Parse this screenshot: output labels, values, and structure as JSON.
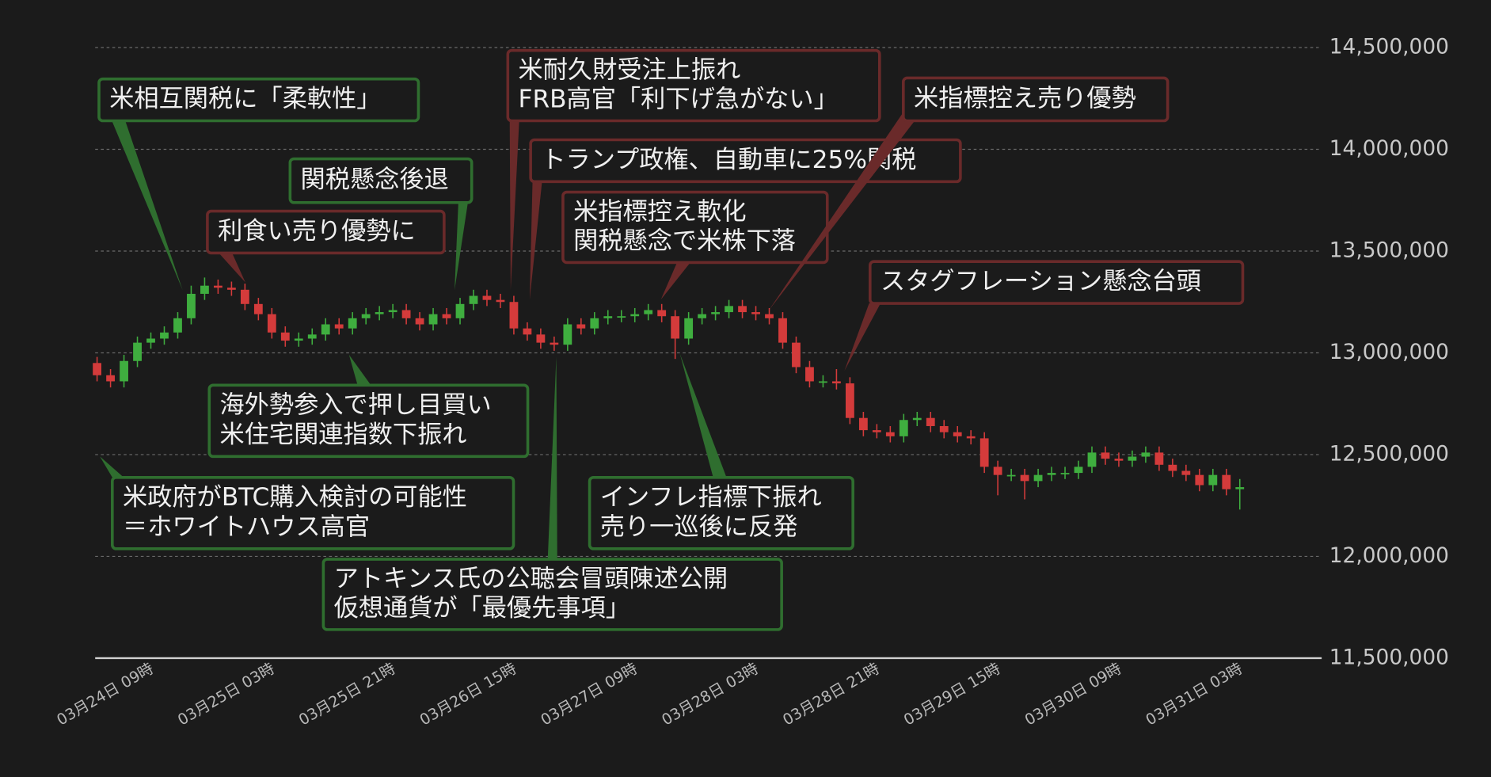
{
  "chart_data": {
    "type": "candlestick",
    "categories": [
      null,
      null,
      null,
      null,
      "03月24日 09時",
      null,
      null,
      null,
      null,
      null,
      null,
      null,
      null,
      "03月25日 03時",
      null,
      null,
      null,
      null,
      null,
      null,
      null,
      null,
      "03月25日 21時",
      null,
      null,
      null,
      null,
      null,
      null,
      null,
      null,
      "03月26日 15時",
      null,
      null,
      null,
      null,
      null,
      null,
      null,
      null,
      "03月27日 09時",
      null,
      null,
      null,
      null,
      null,
      null,
      null,
      null,
      "03月28日 03時",
      null,
      null,
      null,
      null,
      null,
      null,
      null,
      null,
      "03月28日 21時",
      null,
      null,
      null,
      null,
      null,
      null,
      null,
      null,
      "03月29日 15時",
      null,
      null,
      null,
      null,
      null,
      null,
      null,
      null,
      "03月30日 09時",
      null,
      null,
      null,
      null,
      null,
      null,
      null,
      null,
      "03月31日 03時"
    ],
    "open": [
      12950000,
      12890000,
      12860000,
      12960000,
      13050000,
      13070000,
      13100000,
      13170000,
      13290000,
      13330000,
      13320000,
      13310000,
      13240000,
      13190000,
      13100000,
      13060000,
      13070000,
      13090000,
      13140000,
      13120000,
      13170000,
      13190000,
      13200000,
      13210000,
      13170000,
      13140000,
      13190000,
      13170000,
      13240000,
      13280000,
      13260000,
      13250000,
      13120000,
      13090000,
      13050000,
      13040000,
      13140000,
      13120000,
      13170000,
      13180000,
      13180000,
      13190000,
      13210000,
      13180000,
      13070000,
      13170000,
      13190000,
      13200000,
      13230000,
      13200000,
      13190000,
      13170000,
      13050000,
      12930000,
      12860000,
      12860000,
      12850000,
      12680000,
      12620000,
      12610000,
      12590000,
      12670000,
      12680000,
      12640000,
      12610000,
      12590000,
      12580000,
      12440000,
      12400000,
      12400000,
      12370000,
      12400000,
      12410000,
      12410000,
      12440000,
      12510000,
      12480000,
      12470000,
      12490000,
      12510000,
      12450000,
      12420000,
      12400000,
      12350000,
      12400000,
      12330000
    ],
    "high": [
      12980000,
      12920000,
      12990000,
      13080000,
      13100000,
      13130000,
      13200000,
      13330000,
      13370000,
      13360000,
      13350000,
      13340000,
      13270000,
      13220000,
      13130000,
      13100000,
      13120000,
      13170000,
      13170000,
      13200000,
      13220000,
      13230000,
      13240000,
      13240000,
      13200000,
      13220000,
      13220000,
      13270000,
      13310000,
      13310000,
      13290000,
      13280000,
      13150000,
      13120000,
      13080000,
      13170000,
      13170000,
      13200000,
      13210000,
      13210000,
      13220000,
      13240000,
      13240000,
      13210000,
      13200000,
      13220000,
      13230000,
      13260000,
      13260000,
      13230000,
      13220000,
      13200000,
      13080000,
      12960000,
      12890000,
      12920000,
      12880000,
      12710000,
      12650000,
      12640000,
      12700000,
      12710000,
      12710000,
      12670000,
      12640000,
      12620000,
      12610000,
      12470000,
      12430000,
      12430000,
      12430000,
      12440000,
      12440000,
      12470000,
      12540000,
      12540000,
      12510000,
      12520000,
      12540000,
      12540000,
      12480000,
      12450000,
      12430000,
      12430000,
      12430000,
      12380000
    ],
    "low": [
      12860000,
      12830000,
      12830000,
      12930000,
      13020000,
      13040000,
      13070000,
      13140000,
      13260000,
      13290000,
      13280000,
      13210000,
      13160000,
      13070000,
      13030000,
      13030000,
      13040000,
      13060000,
      13090000,
      13090000,
      13140000,
      13160000,
      13170000,
      13140000,
      13110000,
      13110000,
      13140000,
      13140000,
      13210000,
      13230000,
      13220000,
      13090000,
      13060000,
      13020000,
      13010000,
      13010000,
      13090000,
      13090000,
      13140000,
      13150000,
      13150000,
      13160000,
      13150000,
      12970000,
      13040000,
      13140000,
      13160000,
      13170000,
      13170000,
      13160000,
      13140000,
      13020000,
      12900000,
      12830000,
      12830000,
      12820000,
      12650000,
      12590000,
      12580000,
      12560000,
      12560000,
      12640000,
      12610000,
      12580000,
      12560000,
      12550000,
      12410000,
      12300000,
      12370000,
      12280000,
      12340000,
      12370000,
      12380000,
      12380000,
      12410000,
      12450000,
      12440000,
      12440000,
      12460000,
      12420000,
      12390000,
      12370000,
      12320000,
      12320000,
      12300000,
      12230000
    ],
    "close": [
      12890000,
      12860000,
      12960000,
      13050000,
      13070000,
      13100000,
      13170000,
      13290000,
      13330000,
      13320000,
      13310000,
      13240000,
      13190000,
      13100000,
      13060000,
      13070000,
      13090000,
      13140000,
      13120000,
      13170000,
      13190000,
      13200000,
      13210000,
      13170000,
      13140000,
      13190000,
      13170000,
      13240000,
      13280000,
      13260000,
      13250000,
      13120000,
      13090000,
      13050000,
      13040000,
      13140000,
      13120000,
      13170000,
      13180000,
      13180000,
      13190000,
      13210000,
      13180000,
      13070000,
      13170000,
      13190000,
      13200000,
      13230000,
      13200000,
      13190000,
      13170000,
      13050000,
      12930000,
      12860000,
      12860000,
      12850000,
      12680000,
      12620000,
      12610000,
      12590000,
      12670000,
      12680000,
      12640000,
      12610000,
      12590000,
      12580000,
      12440000,
      12400000,
      12400000,
      12370000,
      12400000,
      12410000,
      12410000,
      12440000,
      12510000,
      12480000,
      12470000,
      12490000,
      12510000,
      12450000,
      12420000,
      12400000,
      12350000,
      12400000,
      12330000,
      12340000
    ],
    "up_color": "#3fae3f",
    "down_color": "#d43b3b",
    "ylim": [
      11500000,
      14500000
    ],
    "yticks": [
      {
        "value": 11500000,
        "label": "11,500,000"
      },
      {
        "value": 12000000,
        "label": "12,000,000"
      },
      {
        "value": 12500000,
        "label": "12,500,000"
      },
      {
        "value": 13000000,
        "label": "13,000,000"
      },
      {
        "value": 13500000,
        "label": "13,500,000"
      },
      {
        "value": 14000000,
        "label": "14,000,000"
      },
      {
        "value": 14500000,
        "label": "14,500,000"
      }
    ],
    "grid": true,
    "annotations": [
      {
        "lines": [
          "米相互関税に「柔軟性」"
        ],
        "color": "#2f6e2f"
      },
      {
        "lines": [
          "関税懸念後退"
        ],
        "color": "#2f6e2f"
      },
      {
        "lines": [
          "利食い売り優勢に"
        ],
        "color": "#6a2a2a"
      },
      {
        "lines": [
          "米耐久財受注上振れ",
          "FRB高官「利下げ急がない」"
        ],
        "color": "#6a2a2a"
      },
      {
        "lines": [
          "トランプ政権、自動車に25%関税"
        ],
        "color": "#6a2a2a"
      },
      {
        "lines": [
          "米指標控え軟化",
          "関税懸念で米株下落"
        ],
        "color": "#6a2a2a"
      },
      {
        "lines": [
          "米指標控え売り優勢"
        ],
        "color": "#6a2a2a"
      },
      {
        "lines": [
          "スタグフレーション懸念台頭"
        ],
        "color": "#6a2a2a"
      },
      {
        "lines": [
          "海外勢参入で押し目買い",
          "米住宅関連指数下振れ"
        ],
        "color": "#2f6e2f"
      },
      {
        "lines": [
          "米政府がBTC購入検討の可能性",
          "＝ホワイトハウス高官"
        ],
        "color": "#2f6e2f"
      },
      {
        "lines": [
          "アトキンス氏の公聴会冒頭陳述公開",
          "仮想通貨が「最優先事項」"
        ],
        "color": "#2f6e2f"
      },
      {
        "lines": [
          "インフレ指標下振れ",
          "売り一巡後に反発"
        ],
        "color": "#2f6e2f"
      }
    ]
  }
}
